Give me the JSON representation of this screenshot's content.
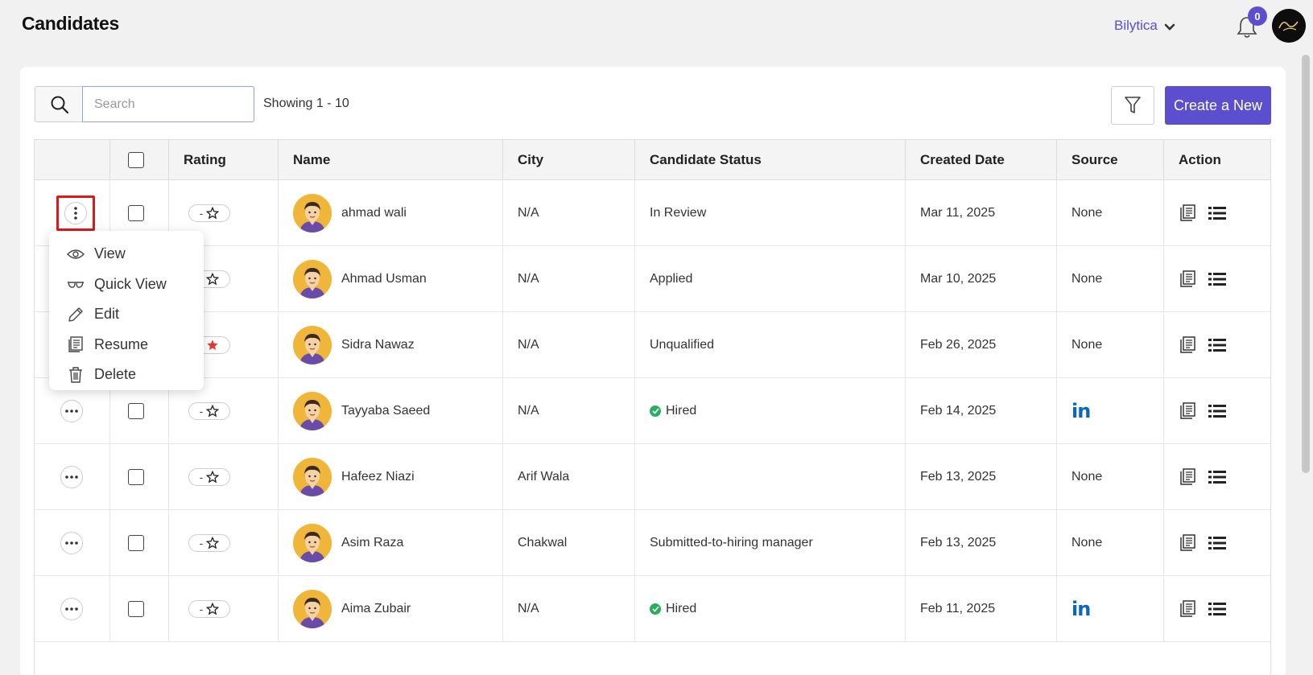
{
  "header": {
    "title": "Candidates",
    "org_name": "Bilytica",
    "notifications_count": "0"
  },
  "toolbar": {
    "search_placeholder": "Search",
    "showing_text": "Showing 1 - 10",
    "create_label": "Create a New"
  },
  "table": {
    "columns": [
      "",
      "",
      "Rating",
      "Name",
      "City",
      "Candidate Status",
      "Created Date",
      "Source",
      "Action"
    ],
    "rows": [
      {
        "rating": "-",
        "rated": false,
        "name": "ahmad wali",
        "city": "N/A",
        "status": "In Review",
        "hired": false,
        "date": "Mar 11, 2025",
        "source": "None"
      },
      {
        "rating": "-",
        "rated": false,
        "name": "Ahmad Usman",
        "city": "N/A",
        "status": "Applied",
        "hired": false,
        "date": "Mar 10, 2025",
        "source": "None"
      },
      {
        "rating": "-",
        "rated": true,
        "name": "Sidra Nawaz",
        "city": "N/A",
        "status": "Unqualified",
        "hired": false,
        "date": "Feb 26, 2025",
        "source": "None"
      },
      {
        "rating": "-",
        "rated": false,
        "name": "Tayyaba Saeed",
        "city": "N/A",
        "status": "Hired",
        "hired": true,
        "date": "Feb 14, 2025",
        "source": "in"
      },
      {
        "rating": "-",
        "rated": false,
        "name": "Hafeez Niazi",
        "city": "Arif Wala",
        "status": "",
        "hired": false,
        "date": "Feb 13, 2025",
        "source": "None"
      },
      {
        "rating": "-",
        "rated": false,
        "name": "Asim Raza",
        "city": "Chakwal",
        "status": "Submitted-to-hiring manager",
        "hired": false,
        "date": "Feb 13, 2025",
        "source": "None"
      },
      {
        "rating": "-",
        "rated": false,
        "name": "Aima Zubair",
        "city": "N/A",
        "status": "Hired",
        "hired": true,
        "date": "Feb 11, 2025",
        "source": "in"
      }
    ]
  },
  "row_menu": {
    "items": [
      {
        "label": "View",
        "icon": "eye-icon"
      },
      {
        "label": "Quick View",
        "icon": "glasses-icon"
      },
      {
        "label": "Edit",
        "icon": "pencil-icon"
      },
      {
        "label": "Resume",
        "icon": "resume-icon"
      },
      {
        "label": "Delete",
        "icon": "trash-icon"
      }
    ]
  },
  "colors": {
    "accent": "#5b4fd0",
    "hired": "#27ae60",
    "linkedin": "#0a66c2",
    "star_active": "#e53935",
    "highlight": "#e01818"
  }
}
